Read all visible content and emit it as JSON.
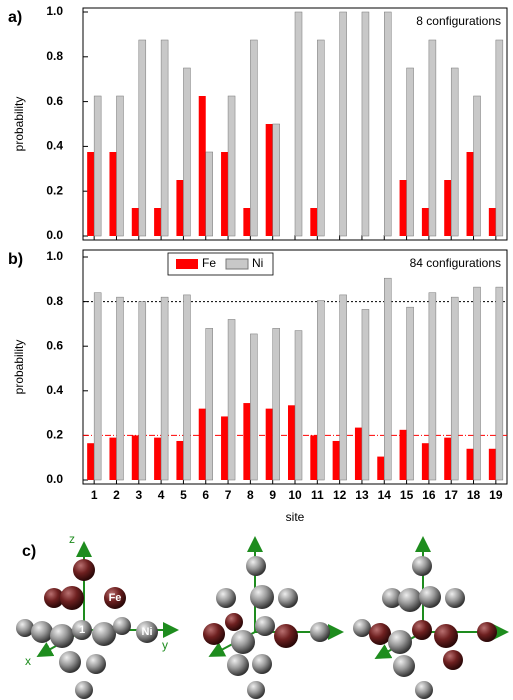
{
  "chart_data": [
    {
      "type": "bar",
      "panel_label": "a)",
      "annotation": "8 configurations",
      "ylabel": "probability",
      "categories": [
        null,
        null,
        null,
        null,
        null,
        null,
        null,
        null,
        null,
        null,
        null,
        null,
        null,
        null,
        null,
        null,
        null,
        null,
        null
      ],
      "series": [
        {
          "name": "Fe",
          "color": "#ff0000",
          "values": [
            0.375,
            0.375,
            0.125,
            0.125,
            0.25,
            0.625,
            0.375,
            0.125,
            0.5,
            0,
            0.125,
            0,
            0,
            0,
            0.25,
            0.125,
            0.25,
            0.375,
            0.125
          ]
        },
        {
          "name": "Ni",
          "color": "#c8c8c8",
          "values": [
            0.625,
            0.625,
            0.875,
            0.875,
            0.75,
            0.375,
            0.625,
            0.875,
            0.5,
            1,
            0.875,
            1,
            1,
            1,
            0.75,
            0.875,
            0.75,
            0.625,
            0.875
          ]
        }
      ],
      "ylim": [
        0,
        1
      ],
      "yticks": [
        {
          "value": 0,
          "label": "0.0"
        },
        0.2,
        0.4,
        0.6,
        0.8,
        {
          "value": 1,
          "label": "1.0"
        }
      ],
      "legend": false
    },
    {
      "type": "bar",
      "panel_label": "b)",
      "annotation": "84 configurations",
      "ylabel": "probability",
      "xlabel": "site",
      "categories": [
        "1",
        "2",
        "3",
        "4",
        "5",
        "6",
        "7",
        "8",
        "9",
        "10",
        "11",
        "12",
        "13",
        "14",
        "15",
        "16",
        "17",
        "18",
        "19"
      ],
      "series": [
        {
          "name": "Fe",
          "color": "#ff0000",
          "values": [
            0.165,
            0.19,
            0.2,
            0.19,
            0.175,
            0.32,
            0.285,
            0.345,
            0.32,
            0.335,
            0.2,
            0.175,
            0.235,
            0.105,
            0.225,
            0.165,
            0.19,
            0.14,
            0.14
          ]
        },
        {
          "name": "Ni",
          "color": "#c8c8c8",
          "values": [
            0.84,
            0.82,
            0.8,
            0.82,
            0.83,
            0.68,
            0.72,
            0.655,
            0.68,
            0.67,
            0.805,
            0.83,
            0.765,
            0.905,
            0.775,
            0.84,
            0.82,
            0.865,
            0.865
          ]
        }
      ],
      "hlines": [
        {
          "value": 0.8,
          "color": "#000000"
        },
        {
          "value": 0.2,
          "color": "#ff0000"
        }
      ],
      "ylim": [
        0,
        1
      ],
      "yticks": [
        {
          "value": 0,
          "label": "0.0"
        },
        0.2,
        0.4,
        0.6,
        0.8,
        {
          "value": 1,
          "label": "1.0"
        }
      ],
      "legend": "top-left"
    }
  ],
  "panel_c": {
    "label": "c)",
    "axes": [
      "z",
      "x",
      "y"
    ],
    "atoms": [
      "Fe",
      "Ni"
    ],
    "site": "1"
  }
}
